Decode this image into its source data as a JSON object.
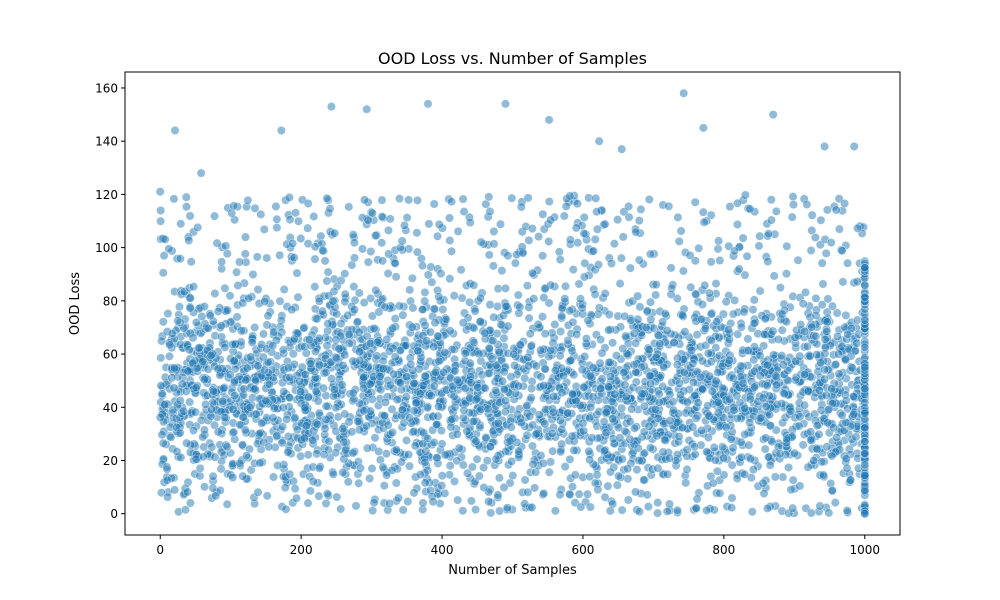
{
  "chart_data": {
    "type": "scatter",
    "title": "OOD Loss vs. Number of Samples",
    "xlabel": "Number of Samples",
    "ylabel": "OOD Loss",
    "xlim": [
      -50,
      1050
    ],
    "ylim": [
      -8,
      166
    ],
    "xticks": [
      "0",
      "200",
      "400",
      "600",
      "800",
      "1000"
    ],
    "yticks": [
      "0",
      "20",
      "40",
      "60",
      "80",
      "100",
      "120",
      "140",
      "160"
    ],
    "grid": false,
    "legend": "none",
    "point_color": "#1f77b4",
    "point_alpha": 0.5,
    "x_range": [
      0,
      1000
    ],
    "y_range": [
      0,
      158
    ],
    "notable_points": [
      {
        "x": 21,
        "y": 144
      },
      {
        "x": 58,
        "y": 128
      },
      {
        "x": 172,
        "y": 144
      },
      {
        "x": 243,
        "y": 153
      },
      {
        "x": 293,
        "y": 152
      },
      {
        "x": 380,
        "y": 154
      },
      {
        "x": 490,
        "y": 154
      },
      {
        "x": 552,
        "y": 148
      },
      {
        "x": 623,
        "y": 140
      },
      {
        "x": 655,
        "y": 137
      },
      {
        "x": 743,
        "y": 158
      },
      {
        "x": 771,
        "y": 145
      },
      {
        "x": 870,
        "y": 150
      },
      {
        "x": 943,
        "y": 138
      },
      {
        "x": 985,
        "y": 138
      },
      {
        "x": 0,
        "y": 121
      },
      {
        "x": 1000,
        "y": 0
      }
    ]
  }
}
